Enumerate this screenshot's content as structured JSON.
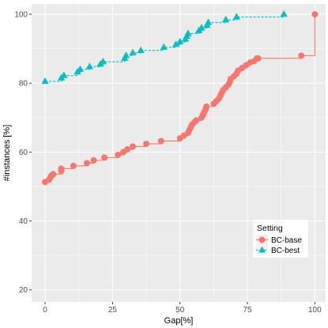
{
  "chart_data": {
    "type": "step",
    "xlabel": "Gap[%]",
    "ylabel": "#instances [%]",
    "xlim": [
      -5,
      104
    ],
    "ylim": [
      16.5,
      103
    ],
    "x_ticks": [
      0,
      25,
      50,
      75,
      100
    ],
    "y_ticks": [
      20,
      40,
      60,
      80,
      100
    ],
    "grid": true,
    "legend": {
      "title": "Setting",
      "position": "bottom-right"
    },
    "series": [
      {
        "name": "BC-base",
        "color": "#F8766D",
        "marker": "circle",
        "line_style": "solid",
        "points": [
          [
            0,
            51.3
          ],
          [
            1.5,
            52
          ],
          [
            2,
            52.7
          ],
          [
            2.5,
            53.3
          ],
          [
            3,
            53.6
          ],
          [
            6,
            54.5
          ],
          [
            6,
            55.2
          ],
          [
            10.5,
            56
          ],
          [
            15.5,
            56.8
          ],
          [
            18,
            57.6
          ],
          [
            22,
            58.4
          ],
          [
            27,
            59.2
          ],
          [
            29,
            60
          ],
          [
            30.5,
            60.8
          ],
          [
            32.5,
            61.6
          ],
          [
            37.5,
            62.4
          ],
          [
            43,
            63.2
          ],
          [
            50,
            64
          ],
          [
            51.5,
            64.8
          ],
          [
            53,
            65.6
          ],
          [
            53.5,
            66.4
          ],
          [
            54,
            67.2
          ],
          [
            54.5,
            68
          ],
          [
            55.5,
            68.8
          ],
          [
            56,
            69.2
          ],
          [
            58,
            70
          ],
          [
            58.5,
            70.8
          ],
          [
            59,
            71.6
          ],
          [
            59.5,
            72.4
          ],
          [
            59.8,
            73.2
          ],
          [
            62.5,
            74
          ],
          [
            63.5,
            74.8
          ],
          [
            64.5,
            75.6
          ],
          [
            65,
            76.4
          ],
          [
            65.5,
            77.2
          ],
          [
            66,
            78
          ],
          [
            67,
            78.8
          ],
          [
            68,
            79.6
          ],
          [
            68.5,
            80.4
          ],
          [
            68.8,
            81.2
          ],
          [
            70,
            82
          ],
          [
            71,
            82.8
          ],
          [
            71.5,
            83.6
          ],
          [
            73,
            84.4
          ],
          [
            74.5,
            85.2
          ],
          [
            76,
            86
          ],
          [
            77.5,
            86.4
          ],
          [
            78.5,
            87.2
          ],
          [
            79,
            87.2
          ],
          [
            95,
            88
          ],
          [
            100,
            100
          ]
        ]
      },
      {
        "name": "BC-best",
        "color": "#00BFC4",
        "marker": "triangle",
        "line_style": "dashed",
        "points": [
          [
            0,
            80.5
          ],
          [
            6,
            81.5
          ],
          [
            7,
            82.2
          ],
          [
            12,
            83.2
          ],
          [
            13,
            84
          ],
          [
            16.5,
            84.8
          ],
          [
            20.5,
            85.5
          ],
          [
            21.5,
            86.2
          ],
          [
            29.5,
            87.2
          ],
          [
            30,
            88
          ],
          [
            32.5,
            88.8
          ],
          [
            35.5,
            89.5
          ],
          [
            44,
            90.4
          ],
          [
            48.5,
            91.2
          ],
          [
            50,
            92
          ],
          [
            52,
            92.8
          ],
          [
            52.5,
            93.6
          ],
          [
            53,
            94.4
          ],
          [
            57,
            95.2
          ],
          [
            58,
            96
          ],
          [
            60,
            96.8
          ],
          [
            60.5,
            97.6
          ],
          [
            67,
            98.4
          ],
          [
            71,
            99.2
          ],
          [
            88.5,
            100
          ]
        ]
      }
    ]
  }
}
